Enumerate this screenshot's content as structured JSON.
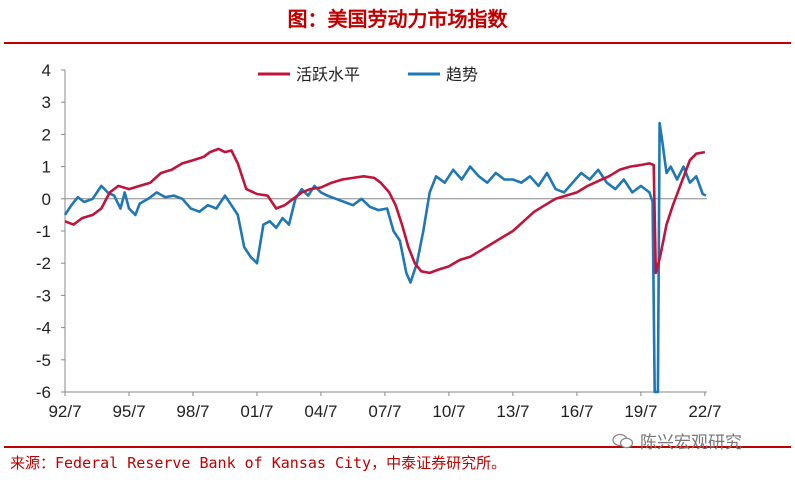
{
  "header": {
    "title": "图：美国劳动力市场指数"
  },
  "footer": {
    "source": "来源：Federal Reserve Bank of Kansas City，中泰证券研究所。",
    "watermark": "陈兴宏观研究",
    "watermark_icon": "wechat-icon"
  },
  "colors": {
    "accent": "#c00000",
    "series_level": "#c0143c",
    "series_momentum": "#1f77b4"
  },
  "chart_data": {
    "type": "line",
    "title": "图：美国劳动力市场指数",
    "xlabel": "",
    "ylabel": "",
    "x_tick_labels": [
      "92/7",
      "95/7",
      "98/7",
      "01/7",
      "04/7",
      "07/7",
      "10/7",
      "13/7",
      "16/7",
      "19/7",
      "22/7"
    ],
    "x_tick_years": [
      1992.5,
      1995.5,
      1998.5,
      2001.5,
      2004.5,
      2007.5,
      2010.5,
      2013.5,
      2016.5,
      2019.5,
      2022.5
    ],
    "xlim": [
      1992.5,
      2022.6
    ],
    "y_ticks": [
      4,
      3,
      2,
      1,
      0,
      -1,
      -2,
      -3,
      -4,
      -5,
      -6
    ],
    "ylim": [
      -6,
      4
    ],
    "grid": false,
    "legend": "top",
    "series": [
      {
        "name": "活跃水平",
        "color": "#c0143c",
        "points": [
          [
            1992.5,
            -0.7
          ],
          [
            1992.9,
            -0.8
          ],
          [
            1993.3,
            -0.6
          ],
          [
            1993.8,
            -0.5
          ],
          [
            1994.2,
            -0.3
          ],
          [
            1994.6,
            0.2
          ],
          [
            1995.0,
            0.4
          ],
          [
            1995.5,
            0.3
          ],
          [
            1996.0,
            0.4
          ],
          [
            1996.5,
            0.5
          ],
          [
            1997.0,
            0.8
          ],
          [
            1997.5,
            0.9
          ],
          [
            1998.0,
            1.1
          ],
          [
            1998.5,
            1.2
          ],
          [
            1999.0,
            1.3
          ],
          [
            1999.3,
            1.45
          ],
          [
            1999.7,
            1.55
          ],
          [
            2000.0,
            1.45
          ],
          [
            2000.3,
            1.5
          ],
          [
            2000.6,
            1.1
          ],
          [
            2001.0,
            0.3
          ],
          [
            2001.5,
            0.15
          ],
          [
            2002.0,
            0.1
          ],
          [
            2002.4,
            -0.3
          ],
          [
            2002.8,
            -0.2
          ],
          [
            2003.2,
            0.0
          ],
          [
            2003.6,
            0.2
          ],
          [
            2004.0,
            0.3
          ],
          [
            2004.5,
            0.35
          ],
          [
            2005.0,
            0.5
          ],
          [
            2005.5,
            0.6
          ],
          [
            2006.0,
            0.65
          ],
          [
            2006.5,
            0.7
          ],
          [
            2007.0,
            0.65
          ],
          [
            2007.3,
            0.5
          ],
          [
            2007.7,
            0.2
          ],
          [
            2008.0,
            -0.2
          ],
          [
            2008.3,
            -0.8
          ],
          [
            2008.6,
            -1.5
          ],
          [
            2008.9,
            -2.0
          ],
          [
            2009.2,
            -2.25
          ],
          [
            2009.6,
            -2.3
          ],
          [
            2010.0,
            -2.2
          ],
          [
            2010.5,
            -2.1
          ],
          [
            2011.0,
            -1.9
          ],
          [
            2011.5,
            -1.8
          ],
          [
            2012.0,
            -1.6
          ],
          [
            2012.5,
            -1.4
          ],
          [
            2013.0,
            -1.2
          ],
          [
            2013.5,
            -1.0
          ],
          [
            2014.0,
            -0.7
          ],
          [
            2014.5,
            -0.4
          ],
          [
            2015.0,
            -0.2
          ],
          [
            2015.5,
            0.0
          ],
          [
            2016.0,
            0.1
          ],
          [
            2016.5,
            0.2
          ],
          [
            2017.0,
            0.4
          ],
          [
            2017.5,
            0.55
          ],
          [
            2018.0,
            0.7
          ],
          [
            2018.5,
            0.9
          ],
          [
            2019.0,
            1.0
          ],
          [
            2019.5,
            1.05
          ],
          [
            2019.9,
            1.1
          ],
          [
            2020.1,
            1.05
          ],
          [
            2020.2,
            -2.3
          ],
          [
            2020.4,
            -1.8
          ],
          [
            2020.7,
            -0.8
          ],
          [
            2021.0,
            -0.2
          ],
          [
            2021.4,
            0.5
          ],
          [
            2021.8,
            1.2
          ],
          [
            2022.1,
            1.4
          ],
          [
            2022.5,
            1.45
          ]
        ]
      },
      {
        "name": "趋势",
        "color": "#1f77b4",
        "points": [
          [
            1992.5,
            -0.5
          ],
          [
            1992.8,
            -0.2
          ],
          [
            1993.1,
            0.05
          ],
          [
            1993.4,
            -0.1
          ],
          [
            1993.8,
            0.0
          ],
          [
            1994.2,
            0.4
          ],
          [
            1994.5,
            0.2
          ],
          [
            1994.8,
            0.1
          ],
          [
            1995.1,
            -0.3
          ],
          [
            1995.3,
            0.2
          ],
          [
            1995.5,
            -0.3
          ],
          [
            1995.8,
            -0.5
          ],
          [
            1996.0,
            -0.15
          ],
          [
            1996.4,
            0.0
          ],
          [
            1996.8,
            0.2
          ],
          [
            1997.2,
            0.05
          ],
          [
            1997.6,
            0.1
          ],
          [
            1998.0,
            0.0
          ],
          [
            1998.4,
            -0.3
          ],
          [
            1998.8,
            -0.4
          ],
          [
            1999.2,
            -0.2
          ],
          [
            1999.6,
            -0.3
          ],
          [
            2000.0,
            0.1
          ],
          [
            2000.3,
            -0.2
          ],
          [
            2000.6,
            -0.5
          ],
          [
            2000.9,
            -1.5
          ],
          [
            2001.2,
            -1.8
          ],
          [
            2001.5,
            -2.0
          ],
          [
            2001.8,
            -0.8
          ],
          [
            2002.1,
            -0.7
          ],
          [
            2002.4,
            -0.9
          ],
          [
            2002.7,
            -0.6
          ],
          [
            2003.0,
            -0.8
          ],
          [
            2003.3,
            0.0
          ],
          [
            2003.6,
            0.3
          ],
          [
            2003.9,
            0.1
          ],
          [
            2004.2,
            0.4
          ],
          [
            2004.5,
            0.2
          ],
          [
            2004.8,
            0.1
          ],
          [
            2005.2,
            0.0
          ],
          [
            2005.6,
            -0.1
          ],
          [
            2006.0,
            -0.2
          ],
          [
            2006.4,
            0.0
          ],
          [
            2006.8,
            -0.25
          ],
          [
            2007.2,
            -0.35
          ],
          [
            2007.6,
            -0.3
          ],
          [
            2007.9,
            -1.0
          ],
          [
            2008.2,
            -1.3
          ],
          [
            2008.5,
            -2.3
          ],
          [
            2008.7,
            -2.6
          ],
          [
            2009.0,
            -2.0
          ],
          [
            2009.3,
            -1.0
          ],
          [
            2009.6,
            0.2
          ],
          [
            2009.9,
            0.7
          ],
          [
            2010.3,
            0.5
          ],
          [
            2010.7,
            0.9
          ],
          [
            2011.1,
            0.6
          ],
          [
            2011.5,
            1.0
          ],
          [
            2011.9,
            0.7
          ],
          [
            2012.3,
            0.5
          ],
          [
            2012.7,
            0.8
          ],
          [
            2013.1,
            0.6
          ],
          [
            2013.5,
            0.6
          ],
          [
            2013.9,
            0.5
          ],
          [
            2014.3,
            0.7
          ],
          [
            2014.7,
            0.4
          ],
          [
            2015.1,
            0.8
          ],
          [
            2015.5,
            0.3
          ],
          [
            2015.9,
            0.2
          ],
          [
            2016.3,
            0.5
          ],
          [
            2016.7,
            0.8
          ],
          [
            2017.1,
            0.6
          ],
          [
            2017.5,
            0.9
          ],
          [
            2017.9,
            0.5
          ],
          [
            2018.3,
            0.3
          ],
          [
            2018.7,
            0.6
          ],
          [
            2019.1,
            0.2
          ],
          [
            2019.5,
            0.4
          ],
          [
            2019.9,
            0.2
          ],
          [
            2020.05,
            -0.1
          ],
          [
            2020.15,
            -6.0
          ],
          [
            2020.3,
            -6.0
          ],
          [
            2020.38,
            2.35
          ],
          [
            2020.5,
            1.8
          ],
          [
            2020.7,
            0.8
          ],
          [
            2020.9,
            1.0
          ],
          [
            2021.2,
            0.6
          ],
          [
            2021.5,
            1.0
          ],
          [
            2021.8,
            0.5
          ],
          [
            2022.1,
            0.7
          ],
          [
            2022.4,
            0.15
          ],
          [
            2022.55,
            0.1
          ]
        ]
      }
    ]
  }
}
